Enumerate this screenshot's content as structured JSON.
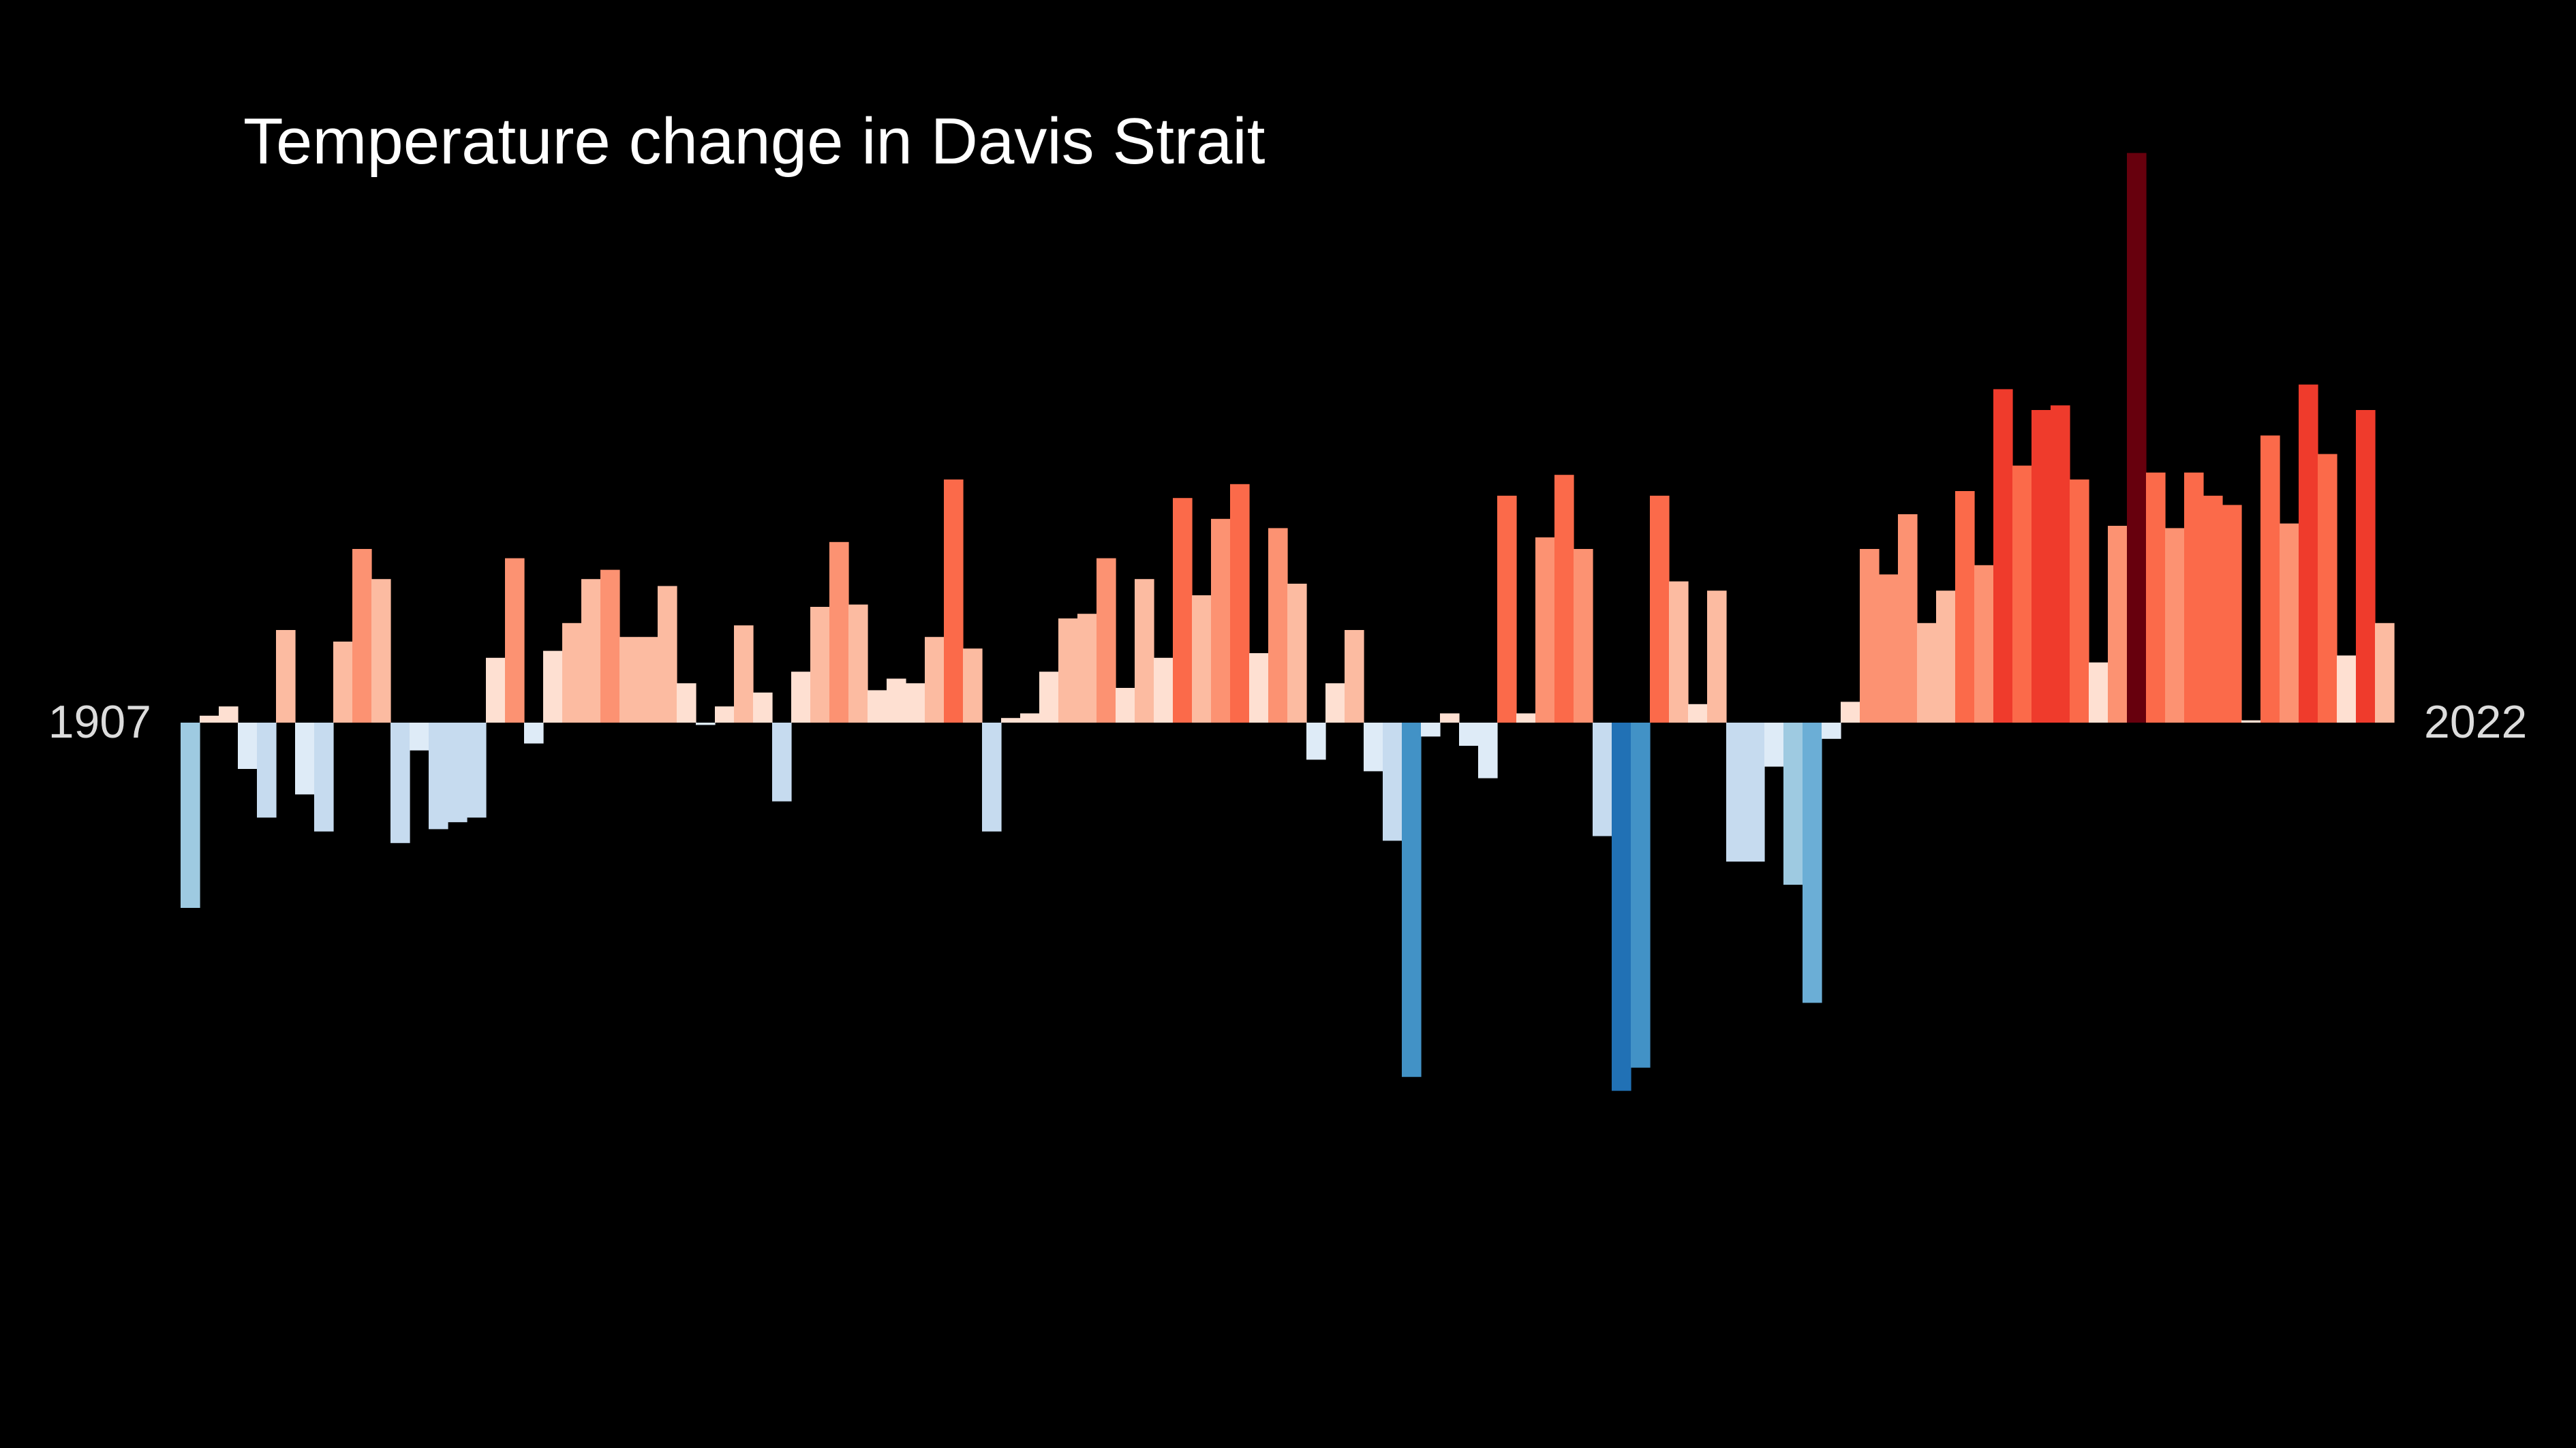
{
  "chart_data": {
    "type": "bar",
    "title": "Temperature change in Davis Strait",
    "start_year": "1907",
    "end_year": "2022",
    "background": "#000000",
    "colors": {
      "positive": [
        "#fee0d2",
        "#fcbba1",
        "#fc9272",
        "#fb6a4a",
        "#ef3b2c",
        "#cb181d",
        "#a50f15",
        "#67000d"
      ],
      "negative": [
        "#deebf7",
        "#c6dbef",
        "#9ecae1",
        "#6baed6",
        "#4292c6",
        "#2171b5",
        "#08519c",
        "#08306b"
      ]
    },
    "ylim": [
      -1.7,
      2.6
    ],
    "values": [
      -0.8,
      0.03,
      0.07,
      -0.2,
      -0.41,
      0.4,
      -0.31,
      -0.47,
      0.35,
      0.75,
      0.62,
      -0.52,
      -0.12,
      -0.46,
      -0.43,
      -0.41,
      0.28,
      0.71,
      -0.09,
      0.31,
      0.43,
      0.62,
      0.66,
      0.37,
      0.37,
      0.59,
      0.17,
      -0.01,
      0.07,
      0.42,
      0.13,
      -0.34,
      0.22,
      0.5,
      0.78,
      0.51,
      0.14,
      0.19,
      0.17,
      0.37,
      1.05,
      0.32,
      -0.47,
      0.02,
      0.04,
      0.22,
      0.45,
      0.47,
      0.71,
      0.15,
      0.62,
      0.28,
      0.97,
      0.55,
      0.88,
      1.03,
      0.3,
      0.84,
      0.6,
      -0.16,
      0.17,
      0.4,
      -0.21,
      -0.51,
      -1.53,
      -0.06,
      0.04,
      -0.1,
      -0.24,
      0.98,
      0.04,
      0.8,
      1.07,
      0.75,
      -0.49,
      -1.59,
      -1.49,
      0.98,
      0.61,
      0.08,
      0.57,
      -0.6,
      -0.6,
      -0.19,
      -0.7,
      -1.21,
      -0.07,
      0.09,
      0.75,
      0.64,
      0.9,
      0.43,
      0.57,
      1.0,
      0.68,
      1.44,
      1.11,
      1.35,
      1.37,
      1.05,
      0.26,
      0.85,
      2.46,
      1.08,
      0.84,
      1.08,
      0.98,
      0.94,
      0.01,
      1.24,
      0.86,
      1.46,
      1.16,
      0.29,
      1.35,
      0.43
    ]
  }
}
